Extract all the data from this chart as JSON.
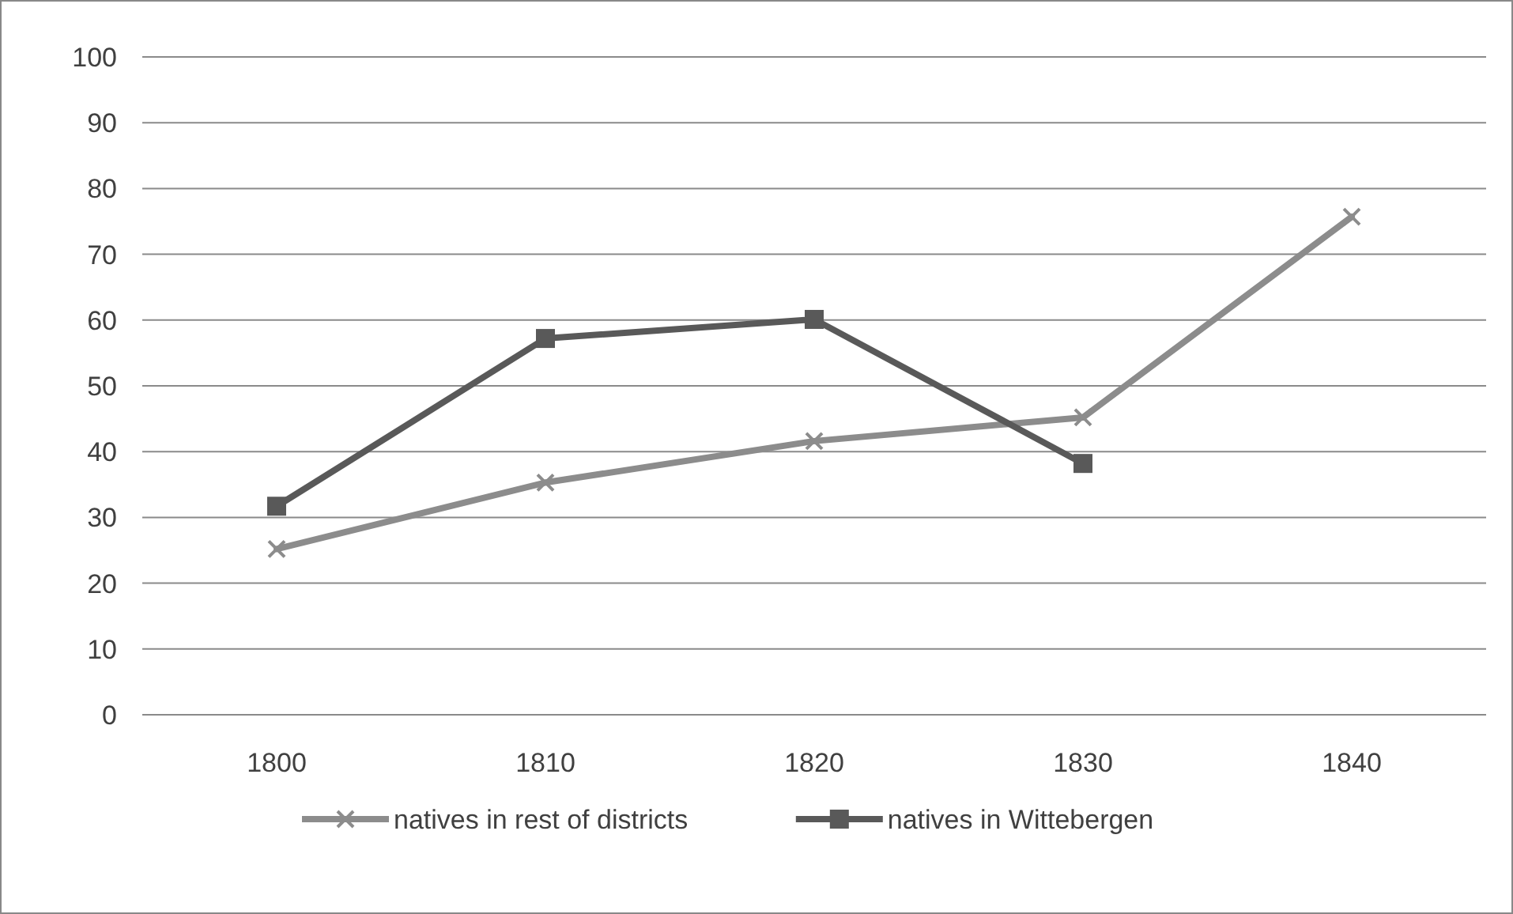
{
  "chart_data": {
    "type": "line",
    "categories": [
      "1800",
      "1810",
      "1820",
      "1830",
      "1840"
    ],
    "series": [
      {
        "name": "natives in rest of districts",
        "color": "#8c8c8c",
        "marker": "cross",
        "values": [
          25.2,
          35.3,
          41.6,
          45.2,
          75.7
        ]
      },
      {
        "name": "natives in Wittebergen",
        "color": "#595959",
        "marker": "square",
        "values": [
          31.7,
          57.2,
          60.1,
          38.2,
          null
        ]
      }
    ],
    "ylim": [
      0,
      100
    ],
    "yticks": [
      0,
      10,
      20,
      30,
      40,
      50,
      60,
      70,
      80,
      90,
      100
    ],
    "grid": "y",
    "legend": "bottom",
    "line_style": "solid"
  }
}
